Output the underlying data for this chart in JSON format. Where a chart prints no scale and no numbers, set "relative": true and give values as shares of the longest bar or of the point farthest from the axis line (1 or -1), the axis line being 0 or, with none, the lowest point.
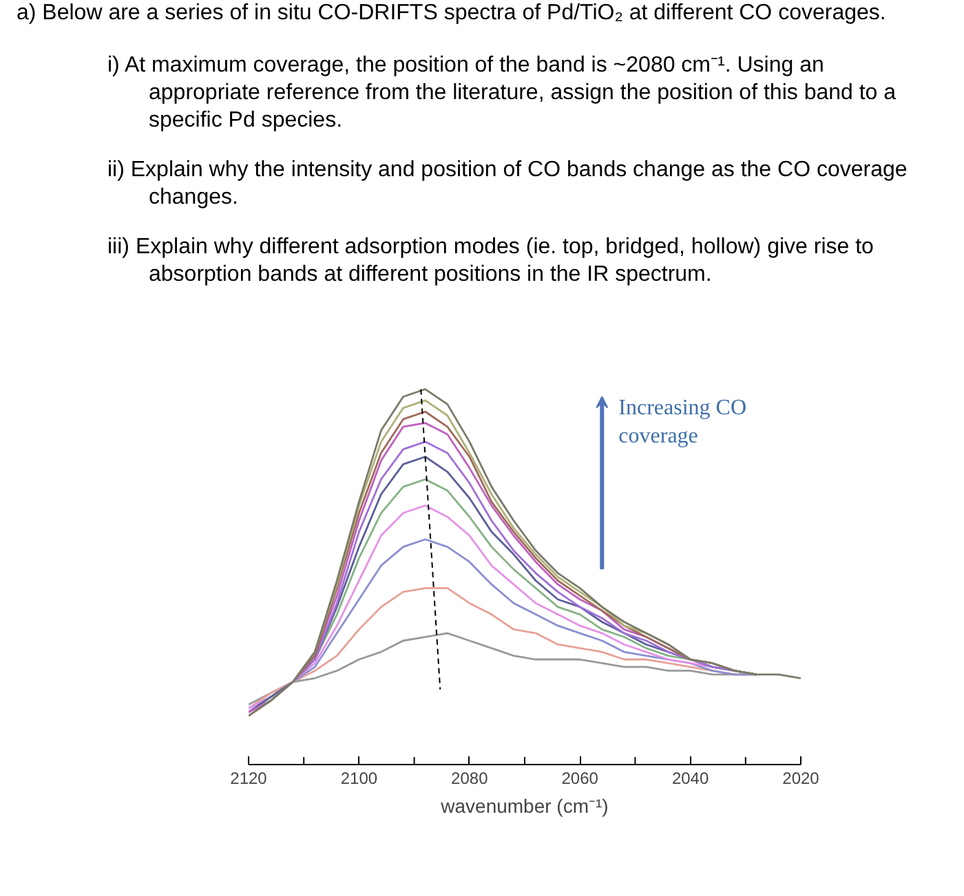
{
  "chart_data": {
    "type": "line",
    "relative": true,
    "title": "a) Below are a series of in situ CO-DRIFTS spectra of Pd/TiO₂ at different CO coverages.",
    "annotations": [
      "i) At maximum coverage, the position of the band is ~2080 cm⁻¹. Using an appropriate reference from the literature, assign the position of this band to a specific Pd species.",
      "ii) Explain why the intensity and position of CO bands change as the CO coverage changes.",
      "iii) Explain why different adsorption modes (ie. top, bridged, hollow) give rise to absorption bands at different positions in the IR spectrum.",
      "Increasing CO coverage"
    ],
    "xlabel": "wavenumber (cm⁻¹)",
    "xlim": [
      2120,
      2020
    ],
    "xticks": [
      2120,
      {
        "value": 2110,
        "label": null
      },
      2100,
      {
        "value": 2090,
        "label": null
      },
      2080,
      {
        "value": 2070,
        "label": null
      },
      2060,
      {
        "value": 2050,
        "label": null
      },
      2040,
      {
        "value": 2030,
        "label": null
      },
      2020
    ],
    "tick_labels": "x",
    "grid": false,
    "marker": "none",
    "line_style": "solid",
    "x": [
      2120,
      2116,
      2112,
      2108,
      2104,
      2100,
      2096,
      2092,
      2088,
      2084,
      2080,
      2076,
      2072,
      2068,
      2064,
      2060,
      2056,
      2052,
      2048,
      2044,
      2040,
      2036,
      2032,
      2028,
      2024,
      2020
    ],
    "series": [
      {
        "color": "#999999",
        "values": [
          0.16,
          0.19,
          0.22,
          0.23,
          0.25,
          0.28,
          0.3,
          0.33,
          0.34,
          0.35,
          0.33,
          0.31,
          0.29,
          0.28,
          0.28,
          0.28,
          0.27,
          0.26,
          0.26,
          0.25,
          0.25,
          0.24,
          0.24,
          0.24,
          null,
          null
        ]
      },
      {
        "color": "#e8a097",
        "values": [
          0.15,
          0.19,
          0.22,
          0.25,
          0.29,
          0.36,
          0.42,
          0.46,
          0.47,
          0.47,
          0.43,
          0.4,
          0.36,
          0.35,
          0.32,
          0.31,
          0.3,
          0.28,
          0.28,
          0.27,
          0.26,
          0.25,
          0.24,
          0.24,
          null,
          null
        ]
      },
      {
        "color": "#8a8fd0",
        "values": [
          0.15,
          0.18,
          0.22,
          0.26,
          0.35,
          0.44,
          0.53,
          0.58,
          0.6,
          0.58,
          0.54,
          0.48,
          0.43,
          0.4,
          0.37,
          0.35,
          0.33,
          0.3,
          0.29,
          0.28,
          0.27,
          0.25,
          0.24,
          0.24,
          null,
          null
        ]
      },
      {
        "color": "#e592e8",
        "values": [
          0.15,
          0.18,
          0.22,
          0.27,
          0.37,
          0.49,
          0.61,
          0.67,
          0.69,
          0.66,
          0.61,
          0.53,
          0.48,
          0.43,
          0.4,
          0.37,
          0.35,
          0.32,
          0.3,
          0.28,
          0.27,
          0.26,
          0.25,
          0.24,
          null,
          null
        ]
      },
      {
        "color": "#86b286",
        "values": [
          0.14,
          0.18,
          0.22,
          0.28,
          0.4,
          0.55,
          0.67,
          0.74,
          0.76,
          0.73,
          0.66,
          0.58,
          0.52,
          0.47,
          0.42,
          0.4,
          0.36,
          0.34,
          0.31,
          0.29,
          0.28,
          0.26,
          0.25,
          0.24,
          null,
          null
        ]
      },
      {
        "color": "#5a5f9a",
        "values": [
          0.14,
          0.18,
          0.22,
          0.28,
          0.42,
          0.58,
          0.72,
          0.8,
          0.82,
          0.78,
          0.71,
          0.62,
          0.56,
          0.49,
          0.44,
          0.42,
          0.38,
          0.35,
          0.32,
          0.3,
          0.28,
          0.26,
          0.25,
          0.24,
          null,
          null
        ]
      },
      {
        "color": "#a070d8",
        "values": [
          0.14,
          0.17,
          0.22,
          0.28,
          0.43,
          0.62,
          0.76,
          0.84,
          0.86,
          0.83,
          0.75,
          0.65,
          0.57,
          0.51,
          0.46,
          0.42,
          0.39,
          0.35,
          0.33,
          0.3,
          0.28,
          0.26,
          0.25,
          0.24,
          null,
          null
        ]
      },
      {
        "color": "#c060c0",
        "values": [
          0.14,
          0.17,
          0.22,
          0.29,
          0.45,
          0.65,
          0.81,
          0.9,
          0.91,
          0.88,
          0.79,
          0.69,
          0.61,
          0.54,
          0.48,
          0.44,
          0.41,
          0.36,
          0.34,
          0.31,
          0.28,
          0.27,
          0.25,
          0.24,
          null,
          null
        ]
      },
      {
        "color": "#a06a5a",
        "values": [
          0.13,
          0.17,
          0.22,
          0.29,
          0.47,
          0.67,
          0.83,
          0.92,
          0.94,
          0.9,
          0.82,
          0.7,
          0.62,
          0.55,
          0.49,
          0.45,
          0.41,
          0.37,
          0.34,
          0.31,
          0.28,
          0.27,
          0.25,
          0.24,
          null,
          null
        ]
      },
      {
        "color": "#b0b078",
        "values": [
          0.13,
          0.17,
          0.22,
          0.3,
          0.48,
          0.69,
          0.86,
          0.95,
          0.97,
          0.93,
          0.83,
          0.72,
          0.63,
          0.56,
          0.5,
          0.46,
          0.42,
          0.37,
          0.35,
          0.32,
          0.28,
          0.27,
          0.25,
          0.24,
          null,
          null
        ]
      },
      {
        "color": "#7a7a6a",
        "values": [
          0.13,
          0.17,
          0.22,
          0.3,
          0.49,
          0.7,
          0.89,
          0.98,
          1.0,
          0.96,
          0.86,
          0.74,
          0.65,
          0.57,
          0.51,
          0.47,
          0.42,
          0.38,
          0.35,
          0.32,
          0.28,
          0.27,
          0.25,
          0.24,
          0.24,
          0.23
        ]
      },
      {
        "color": "#000000",
        "line_style": "dashed",
        "x": [
          2088.8,
          2085.3
        ],
        "values": [
          1.0,
          0.2
        ]
      }
    ]
  }
}
